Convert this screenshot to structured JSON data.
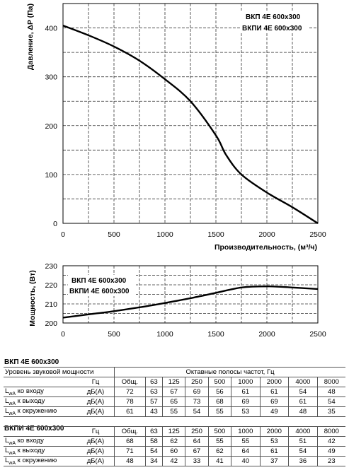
{
  "chart_data": [
    {
      "type": "line",
      "ylabel": "Давление, ΔP (Па)",
      "xlabel": "Производительность, (м³/ч)",
      "xlim": [
        0,
        2500
      ],
      "ylim": [
        0,
        450
      ],
      "xticks": [
        0,
        500,
        1000,
        1500,
        2000,
        2500
      ],
      "yticks": [
        0,
        100,
        200,
        300,
        400
      ],
      "grid": true,
      "legend": [
        "ВКП 4Е 600x300",
        "ВКПИ 4Е 600x300"
      ],
      "legend_position": "top-right",
      "series": [
        {
          "x": [
            0,
            250,
            500,
            750,
            1000,
            1250,
            1500,
            1600,
            1750,
            2000,
            2250,
            2500
          ],
          "y": [
            405,
            385,
            362,
            333,
            295,
            250,
            180,
            140,
            100,
            63,
            33,
            0
          ]
        }
      ]
    },
    {
      "type": "line",
      "ylabel": "Мощность, (Вт)",
      "xlim": [
        0,
        2500
      ],
      "ylim": [
        200,
        230
      ],
      "xticks": [
        0,
        500,
        1000,
        1500,
        2000,
        2500
      ],
      "yticks": [
        200,
        210,
        220,
        230
      ],
      "grid": true,
      "legend": [
        "ВКП 4Е 600x300",
        "ВКПИ 4Е 600x300"
      ],
      "legend_position": "top-left",
      "series": [
        {
          "x": [
            0,
            250,
            500,
            750,
            1000,
            1250,
            1500,
            1750,
            2000,
            2250,
            2500
          ],
          "y": [
            202.8,
            204.5,
            206.2,
            208.2,
            210.5,
            213,
            215.8,
            218.6,
            219.2,
            218.6,
            217.8
          ]
        }
      ]
    }
  ],
  "tables": [
    {
      "title": "ВКП 4Е 600x300",
      "header_left": "Уровень звуковой мощности",
      "header_right": "Октавные полосы частот, Гц",
      "unit_header": "Гц",
      "columns": [
        "Общ.",
        "63",
        "125",
        "250",
        "500",
        "1000",
        "2000",
        "4000",
        "8000"
      ],
      "rows": [
        {
          "label": "L",
          "sub": "wA",
          "suffix": " ко входу",
          "unit": "дБ(А)",
          "values": [
            "72",
            "63",
            "67",
            "69",
            "56",
            "61",
            "61",
            "54",
            "48"
          ]
        },
        {
          "label": "L",
          "sub": "wA",
          "suffix": " к выходу",
          "unit": "дБ(А)",
          "values": [
            "78",
            "57",
            "65",
            "73",
            "68",
            "69",
            "69",
            "61",
            "54"
          ]
        },
        {
          "label": "L",
          "sub": "wA",
          "suffix": " к окружению",
          "unit": "дБ(А)",
          "values": [
            "61",
            "43",
            "55",
            "54",
            "55",
            "53",
            "49",
            "48",
            "35"
          ]
        }
      ]
    },
    {
      "title": "ВКПИ 4Е 600x300",
      "unit_header": "Гц",
      "columns": [
        "Общ.",
        "63",
        "125",
        "250",
        "500",
        "1000",
        "2000",
        "4000",
        "8000"
      ],
      "rows": [
        {
          "label": "L",
          "sub": "wA",
          "suffix": " ко входу",
          "unit": "дБ(А)",
          "values": [
            "68",
            "58",
            "62",
            "64",
            "55",
            "55",
            "53",
            "51",
            "42"
          ]
        },
        {
          "label": "L",
          "sub": "wA",
          "suffix": " к выходу",
          "unit": "дБ(А)",
          "values": [
            "71",
            "54",
            "60",
            "67",
            "62",
            "64",
            "61",
            "54",
            "49"
          ]
        },
        {
          "label": "L",
          "sub": "wA",
          "suffix": " к окружению",
          "unit": "дБ(А)",
          "values": [
            "48",
            "34",
            "42",
            "33",
            "41",
            "40",
            "37",
            "36",
            "23"
          ]
        }
      ]
    }
  ]
}
